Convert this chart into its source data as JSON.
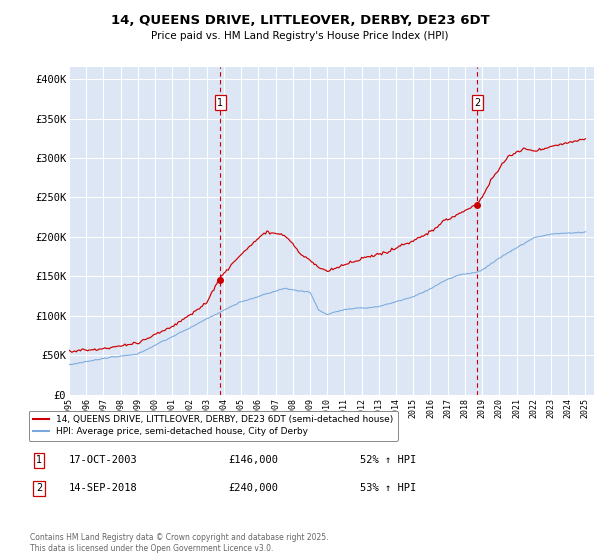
{
  "title": "14, QUEENS DRIVE, LITTLEOVER, DERBY, DE23 6DT",
  "subtitle": "Price paid vs. HM Land Registry's House Price Index (HPI)",
  "bg_color": "#dce6f5",
  "y_ticks": [
    0,
    50000,
    100000,
    150000,
    200000,
    250000,
    300000,
    350000,
    400000
  ],
  "y_tick_labels": [
    "£0",
    "£50K",
    "£100K",
    "£150K",
    "£200K",
    "£250K",
    "£300K",
    "£350K",
    "£400K"
  ],
  "x_start_year": 1995,
  "x_end_year": 2025,
  "sale1_year": 2003.79,
  "sale1_price": 146000,
  "sale2_year": 2018.71,
  "sale2_price": 240000,
  "red_color": "#cc0000",
  "blue_color": "#7aaadd",
  "vline_color": "#cc0000",
  "legend_label_red": "14, QUEENS DRIVE, LITTLEOVER, DERBY, DE23 6DT (semi-detached house)",
  "legend_label_blue": "HPI: Average price, semi-detached house, City of Derby",
  "footer": "Contains HM Land Registry data © Crown copyright and database right 2025.\nThis data is licensed under the Open Government Licence v3.0.",
  "table_rows": [
    {
      "num": "1",
      "date": "17-OCT-2003",
      "price": "£146,000",
      "hpi": "52% ↑ HPI"
    },
    {
      "num": "2",
      "date": "14-SEP-2018",
      "price": "£240,000",
      "hpi": "53% ↑ HPI"
    }
  ]
}
